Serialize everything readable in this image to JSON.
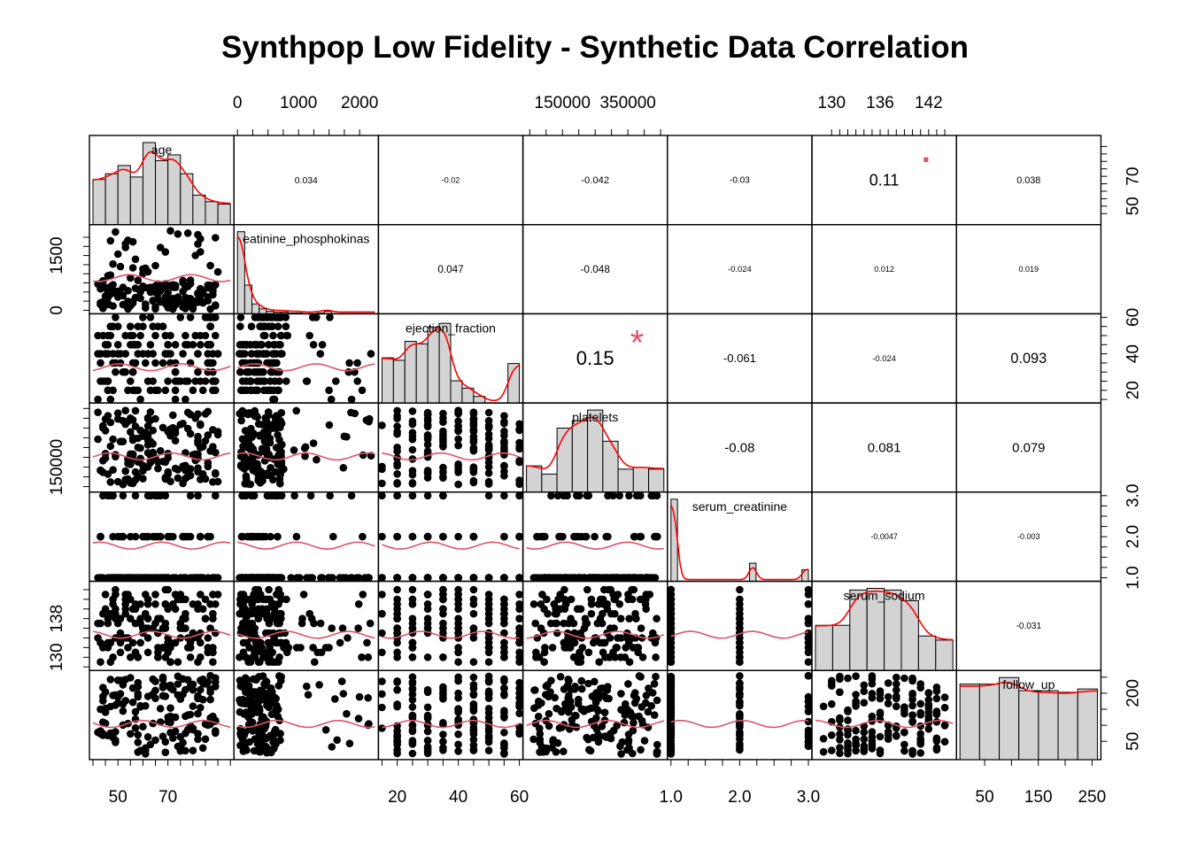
{
  "chart_data": {
    "type": "scatter-matrix",
    "title": "Synthpop Low Fidelity - Synthetic Data Correlation",
    "variables": [
      "age",
      "creatinine_phosphokinase",
      "ejection_fraction",
      "platelets",
      "serum_creatinine",
      "serum_sodium",
      "follow_up"
    ],
    "variable_labels": [
      "age",
      "eatinine_phosphokinas",
      "ejection_fraction",
      "platelets",
      "serum_creatinine",
      "serum_sodium",
      "follow_up"
    ],
    "ranges": [
      [
        40,
        95
      ],
      [
        0,
        2250
      ],
      [
        15,
        60
      ],
      [
        40000,
        460000
      ],
      [
        1.0,
        3.0
      ],
      [
        128,
        145
      ],
      [
        4,
        260
      ]
    ],
    "axis_ticks": {
      "bottom": [
        {
          "var": 0,
          "values": [
            50,
            70
          ],
          "labels": [
            "50",
            "70"
          ],
          "minor": [
            40,
            45,
            50,
            55,
            60,
            65,
            70,
            75,
            80,
            85,
            90,
            95
          ]
        },
        {
          "var": 2,
          "values": [
            20,
            40,
            60
          ],
          "labels": [
            "20",
            "40",
            "60"
          ],
          "minor": [
            15,
            20,
            25,
            30,
            35,
            40,
            45,
            50,
            55,
            60
          ]
        },
        {
          "var": 4,
          "values": [
            1.0,
            2.0,
            3.0
          ],
          "labels": [
            "1.0",
            "2.0",
            "3.0"
          ],
          "minor": [
            1.0,
            1.25,
            1.5,
            1.75,
            2.0,
            2.25,
            2.5,
            2.75,
            3.0
          ]
        },
        {
          "var": 6,
          "values": [
            50,
            150,
            250
          ],
          "labels": [
            "50",
            "150",
            "250"
          ],
          "minor": [
            50,
            100,
            150,
            200,
            250
          ]
        }
      ],
      "top": [
        {
          "var": 1,
          "values": [
            0,
            1000,
            2000
          ],
          "labels": [
            "0",
            "1000",
            "2000"
          ],
          "minor": [
            0,
            250,
            500,
            750,
            1000,
            1250,
            1500,
            1750,
            2000
          ]
        },
        {
          "var": 3,
          "values": [
            150000,
            350000
          ],
          "labels": [
            "150000",
            "350000"
          ],
          "minor": [
            50000,
            100000,
            150000,
            200000,
            250000,
            300000,
            350000,
            400000,
            450000
          ]
        },
        {
          "var": 5,
          "values": [
            130,
            136,
            142
          ],
          "labels": [
            "130",
            "136",
            "142"
          ],
          "minor": [
            130,
            131,
            132,
            133,
            134,
            135,
            136,
            137,
            138,
            139,
            140,
            141,
            142,
            143,
            144
          ]
        }
      ],
      "left": [
        {
          "var": 1,
          "values": [
            0,
            1500
          ],
          "labels": [
            "0",
            "1500"
          ],
          "minor": [
            0,
            250,
            500,
            750,
            1000,
            1250,
            1500,
            1750,
            2000
          ]
        },
        {
          "var": 3,
          "values": [
            150000
          ],
          "labels": [
            "150000"
          ],
          "minor": [
            50000,
            100000,
            150000,
            200000,
            250000,
            300000,
            350000,
            400000,
            450000
          ]
        },
        {
          "var": 5,
          "values": [
            130,
            138
          ],
          "labels": [
            "130",
            "138"
          ],
          "minor": [
            128,
            130,
            132,
            134,
            136,
            138,
            140,
            142,
            144
          ]
        }
      ],
      "right": [
        {
          "var": 0,
          "values": [
            50,
            70
          ],
          "labels": [
            "50",
            "70"
          ],
          "minor": [
            45,
            50,
            55,
            60,
            65,
            70,
            75,
            80,
            85,
            90
          ]
        },
        {
          "var": 2,
          "values": [
            20,
            40,
            60
          ],
          "labels": [
            "20",
            "40",
            "60"
          ],
          "minor": [
            15,
            20,
            25,
            30,
            35,
            40,
            45,
            50,
            55,
            60
          ]
        },
        {
          "var": 4,
          "values": [
            1.0,
            2.0,
            3.0
          ],
          "labels": [
            "1.0",
            "2.0",
            "3.0"
          ],
          "minor": [
            1.0,
            1.25,
            1.5,
            1.75,
            2.0,
            2.25,
            2.5,
            2.75,
            3.0
          ]
        },
        {
          "var": 6,
          "values": [
            50,
            200
          ],
          "labels": [
            "50",
            "200"
          ],
          "minor": [
            50,
            100,
            150,
            200,
            250
          ]
        }
      ]
    },
    "histograms": [
      [
        0.55,
        0.62,
        0.72,
        0.58,
        1.0,
        0.78,
        0.85,
        0.62,
        0.36,
        0.28,
        0.25
      ],
      [
        1.0,
        0.35,
        0.12,
        0.06,
        0.03,
        0.02,
        0.02,
        0.01,
        0.01,
        0.0,
        0.0,
        0.01,
        0.03,
        0.0,
        0.0,
        0.0,
        0.0,
        0.0,
        0.0
      ],
      [
        0.55,
        0.52,
        0.75,
        0.72,
        0.92,
        0.97,
        0.27,
        0.18,
        0.08,
        0.0,
        0.0,
        0.48
      ],
      [
        0.32,
        0.22,
        0.78,
        0.87,
        1.0,
        0.62,
        0.28,
        0.3,
        0.28
      ],
      [
        1.0,
        0.0,
        0.0,
        0.0,
        0.0,
        0.0,
        0.0,
        0.0,
        0.0,
        0.0,
        0.0,
        0.0,
        0.22,
        0.0,
        0.0,
        0.0,
        0.0,
        0.0,
        0.0,
        0.0,
        0.14
      ],
      [
        0.55,
        0.55,
        0.98,
        1.0,
        0.98,
        0.85,
        0.42,
        0.37
      ],
      [
        0.92,
        0.92,
        1.0,
        0.84,
        0.84,
        0.82,
        0.86
      ]
    ],
    "correlations": [
      {
        "row": 0,
        "col": 1,
        "value": "0.034"
      },
      {
        "row": 0,
        "col": 2,
        "value": "-0.02"
      },
      {
        "row": 0,
        "col": 3,
        "value": "-0.042"
      },
      {
        "row": 0,
        "col": 4,
        "value": "-0.03"
      },
      {
        "row": 0,
        "col": 5,
        "value": "0.11",
        "stars": "."
      },
      {
        "row": 0,
        "col": 6,
        "value": "0.038"
      },
      {
        "row": 1,
        "col": 2,
        "value": "0.047"
      },
      {
        "row": 1,
        "col": 3,
        "value": "-0.048"
      },
      {
        "row": 1,
        "col": 4,
        "value": "-0.024"
      },
      {
        "row": 1,
        "col": 5,
        "value": "0.012"
      },
      {
        "row": 1,
        "col": 6,
        "value": "0.019"
      },
      {
        "row": 2,
        "col": 3,
        "value": "0.15",
        "stars": "*"
      },
      {
        "row": 2,
        "col": 4,
        "value": "-0.061"
      },
      {
        "row": 2,
        "col": 5,
        "value": "-0.024"
      },
      {
        "row": 2,
        "col": 6,
        "value": "0.093"
      },
      {
        "row": 3,
        "col": 4,
        "value": "-0.08"
      },
      {
        "row": 3,
        "col": 5,
        "value": "0.081"
      },
      {
        "row": 3,
        "col": 6,
        "value": "0.079"
      },
      {
        "row": 4,
        "col": 5,
        "value": "-0.0047"
      },
      {
        "row": 4,
        "col": 6,
        "value": "-0.003"
      },
      {
        "row": 5,
        "col": 6,
        "value": "-0.031"
      }
    ],
    "colors": {
      "hist_fill": "#d3d3d3",
      "density_line": "#ff0000",
      "smooth_line": "#df536b",
      "points": "#000000",
      "star": "#df536b"
    }
  }
}
